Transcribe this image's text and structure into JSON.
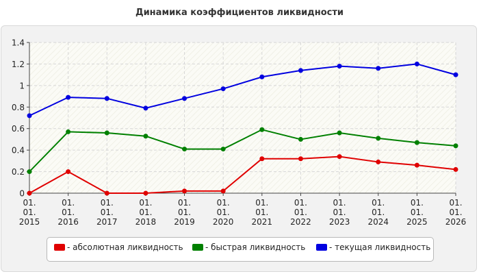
{
  "chart_data": {
    "type": "line",
    "title": "Динамика коэффициентов ликвидности",
    "x": [
      [
        "01.",
        "01.",
        "2015"
      ],
      [
        "01.",
        "01.",
        "2016"
      ],
      [
        "01.",
        "01.",
        "2017"
      ],
      [
        "01.",
        "01.",
        "2018"
      ],
      [
        "01.",
        "01.",
        "2019"
      ],
      [
        "01.",
        "01.",
        "2020"
      ],
      [
        "01.",
        "01.",
        "2021"
      ],
      [
        "01.",
        "01.",
        "2022"
      ],
      [
        "01.",
        "01.",
        "2023"
      ],
      [
        "01.",
        "01.",
        "2024"
      ],
      [
        "01.",
        "01.",
        "2025"
      ],
      [
        "01.",
        "01.",
        "2026"
      ]
    ],
    "yticks": [
      "0",
      "0.2",
      "0.4",
      "0.6",
      "0.8",
      "1",
      "1.2",
      "1.4"
    ],
    "ylim": [
      0,
      1.4
    ],
    "grid": true,
    "legend_position": "bottom",
    "series": [
      {
        "name": "- абсолютная ликвидность",
        "color": "#e00000",
        "values": [
          0.0,
          0.2,
          0.0,
          0.0,
          0.02,
          0.02,
          0.32,
          0.32,
          0.34,
          0.29,
          0.26,
          0.22
        ]
      },
      {
        "name": "- быстрая ликвидность",
        "color": "#008000",
        "values": [
          0.2,
          0.57,
          0.56,
          0.53,
          0.41,
          0.41,
          0.59,
          0.5,
          0.56,
          0.51,
          0.47,
          0.44
        ]
      },
      {
        "name": "- текущая ликвидность",
        "color": "#0000e0",
        "values": [
          0.72,
          0.89,
          0.88,
          0.79,
          0.88,
          0.97,
          1.08,
          1.14,
          1.18,
          1.16,
          1.2,
          1.1
        ]
      }
    ]
  }
}
